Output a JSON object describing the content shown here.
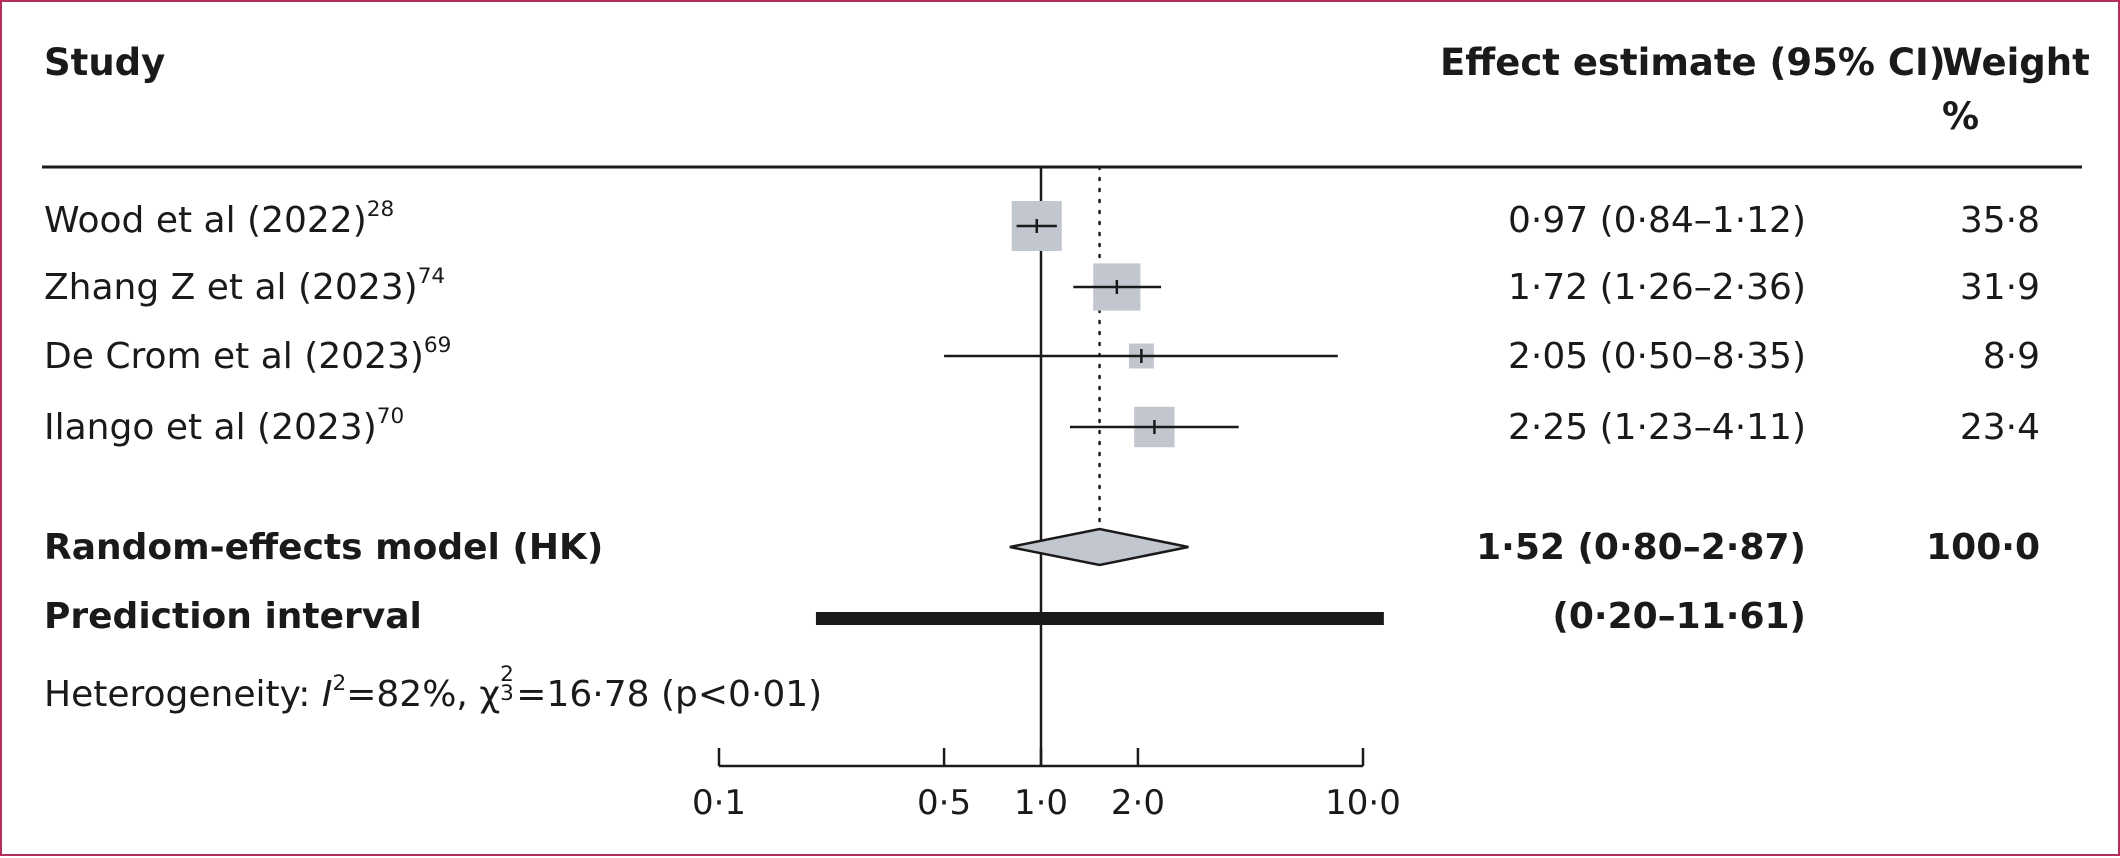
{
  "header": {
    "study": "Study",
    "effect": "Effect estimate (95% CI)",
    "weight_line1": "Weight",
    "weight_line2": "%"
  },
  "chart_data": {
    "type": "forest",
    "x_scale": "log",
    "x_ticks": [
      0.1,
      0.5,
      1.0,
      2.0,
      10.0
    ],
    "x_tick_labels": [
      "0·1",
      "0·5",
      "1·0",
      "2·0",
      "10·0"
    ],
    "null_value": 1.0,
    "pooled_line": 1.52,
    "studies": [
      {
        "name": "Wood et al (2022)",
        "ref": "28",
        "est": 0.97,
        "lo": 0.84,
        "hi": 1.12,
        "ci_text": "0·97 (0·84–1·12)",
        "weight": 35.8,
        "weight_text": "35·8"
      },
      {
        "name": "Zhang Z et al (2023)",
        "ref": "74",
        "est": 1.72,
        "lo": 1.26,
        "hi": 2.36,
        "ci_text": "1·72 (1·26–2·36)",
        "weight": 31.9,
        "weight_text": "31·9"
      },
      {
        "name": "De Crom et al (2023)",
        "ref": "69",
        "est": 2.05,
        "lo": 0.5,
        "hi": 8.35,
        "ci_text": "2·05 (0·50–8·35)",
        "weight": 8.9,
        "weight_text": "8·9"
      },
      {
        "name": "Ilango et al (2023)",
        "ref": "70",
        "est": 2.25,
        "lo": 1.23,
        "hi": 4.11,
        "ci_text": "2·25 (1·23–4·11)",
        "weight": 23.4,
        "weight_text": "23·4"
      }
    ],
    "pooled": {
      "label": "Random-effects model (HK)",
      "est": 1.52,
      "lo": 0.8,
      "hi": 2.87,
      "ci_text": "1·52 (0·80–2·87)",
      "weight_text": "100·0"
    },
    "prediction": {
      "label": "Prediction interval",
      "lo": 0.2,
      "hi": 11.61,
      "ci_text": "(0·20–11·61)"
    },
    "heterogeneity": {
      "prefix": "Heterogeneity: ",
      "i2_symbol": "I",
      "i2_value": "=82%, ",
      "chi_symbol": "χ",
      "chi_sup": "2",
      "chi_sub": "3",
      "chi_value": "=16·78 (p<0·01)"
    },
    "colors": {
      "box": "#c2c6ce",
      "line": "#1a1a1a"
    }
  }
}
